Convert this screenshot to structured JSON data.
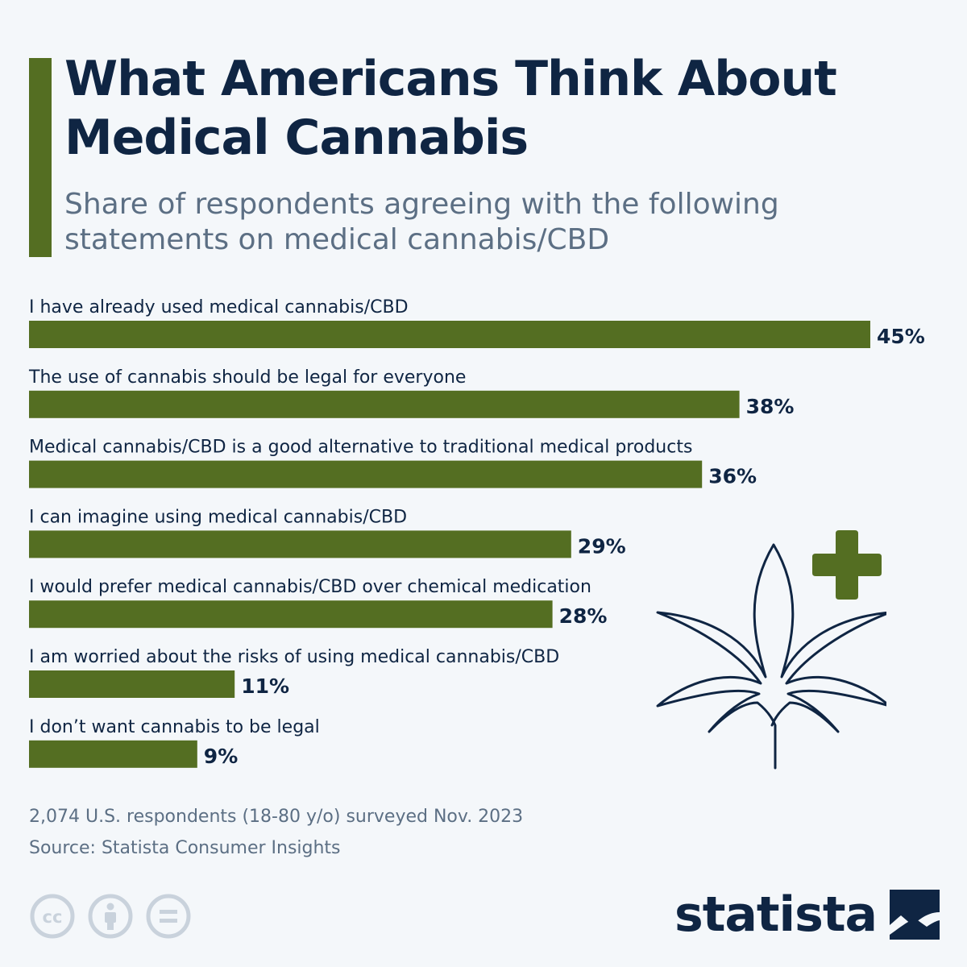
{
  "header": {
    "title": "What Americans Think About Medical Cannabis",
    "subtitle": "Share of respondents agreeing with the following statements on medical cannabis/CBD"
  },
  "chart_data": {
    "type": "bar",
    "orientation": "horizontal",
    "title": "What Americans Think About Medical Cannabis",
    "subtitle": "Share of respondents agreeing with the following statements on medical cannabis/CBD",
    "categories": [
      "I have already used medical cannabis/CBD",
      "The use of cannabis should be legal for everyone",
      "Medical cannabis/CBD is a good alternative to traditional medical products",
      "I can imagine using medical cannabis/CBD",
      "I would prefer medical cannabis/CBD over chemical medication",
      "I am worried about the risks of using medical cannabis/CBD",
      "I don’t want cannabis to be legal"
    ],
    "values": [
      45,
      38,
      36,
      29,
      28,
      11,
      9
    ],
    "value_labels": [
      "45%",
      "38%",
      "36%",
      "29%",
      "28%",
      "11%",
      "9%"
    ],
    "unit": "%",
    "grid": false,
    "bar_color": "#546e22"
  },
  "footer": {
    "note": "2,074 U.S. respondents (18-80 y/o) surveyed Nov. 2023",
    "source": "Source: Statista Consumer Insights",
    "brand": "statista",
    "license_icons": [
      "cc-icon",
      "attribution-icon",
      "no-derivatives-icon"
    ]
  },
  "illustration": {
    "icon": "cannabis-leaf-icon",
    "badge": "plus-icon",
    "badge_color": "#546e22"
  }
}
